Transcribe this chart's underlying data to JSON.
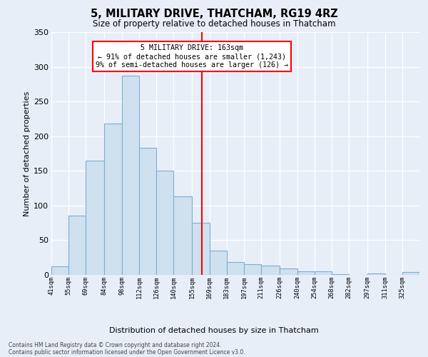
{
  "title": "5, MILITARY DRIVE, THATCHAM, RG19 4RZ",
  "subtitle": "Size of property relative to detached houses in Thatcham",
  "xlabel_bottom": "Distribution of detached houses by size in Thatcham",
  "ylabel": "Number of detached properties",
  "bar_labels": [
    "41sqm",
    "55sqm",
    "69sqm",
    "84sqm",
    "98sqm",
    "112sqm",
    "126sqm",
    "140sqm",
    "155sqm",
    "169sqm",
    "183sqm",
    "197sqm",
    "211sqm",
    "226sqm",
    "240sqm",
    "254sqm",
    "268sqm",
    "282sqm",
    "297sqm",
    "311sqm",
    "325sqm"
  ],
  "bar_values": [
    12,
    85,
    165,
    218,
    287,
    183,
    150,
    113,
    75,
    35,
    19,
    15,
    13,
    9,
    5,
    5,
    1,
    0,
    2,
    0,
    4
  ],
  "bar_color": "#cfe0ef",
  "bar_edge_color": "#7aafd4",
  "bin_edges": [
    41,
    55,
    69,
    84,
    98,
    112,
    126,
    140,
    155,
    169,
    183,
    197,
    211,
    226,
    240,
    254,
    268,
    282,
    297,
    311,
    325,
    339
  ],
  "property_size": 163,
  "annotation_text_line1": "5 MILITARY DRIVE: 163sqm",
  "annotation_text_line2": "← 91% of detached houses are smaller (1,243)",
  "annotation_text_line3": "9% of semi-detached houses are larger (126) →",
  "bg_color": "#e8eef8",
  "plot_bg_color": "#e8eef8",
  "footer_line1": "Contains HM Land Registry data © Crown copyright and database right 2024.",
  "footer_line2": "Contains public sector information licensed under the Open Government Licence v3.0.",
  "ylim": [
    0,
    350
  ],
  "yticks": [
    0,
    50,
    100,
    150,
    200,
    250,
    300,
    350
  ]
}
